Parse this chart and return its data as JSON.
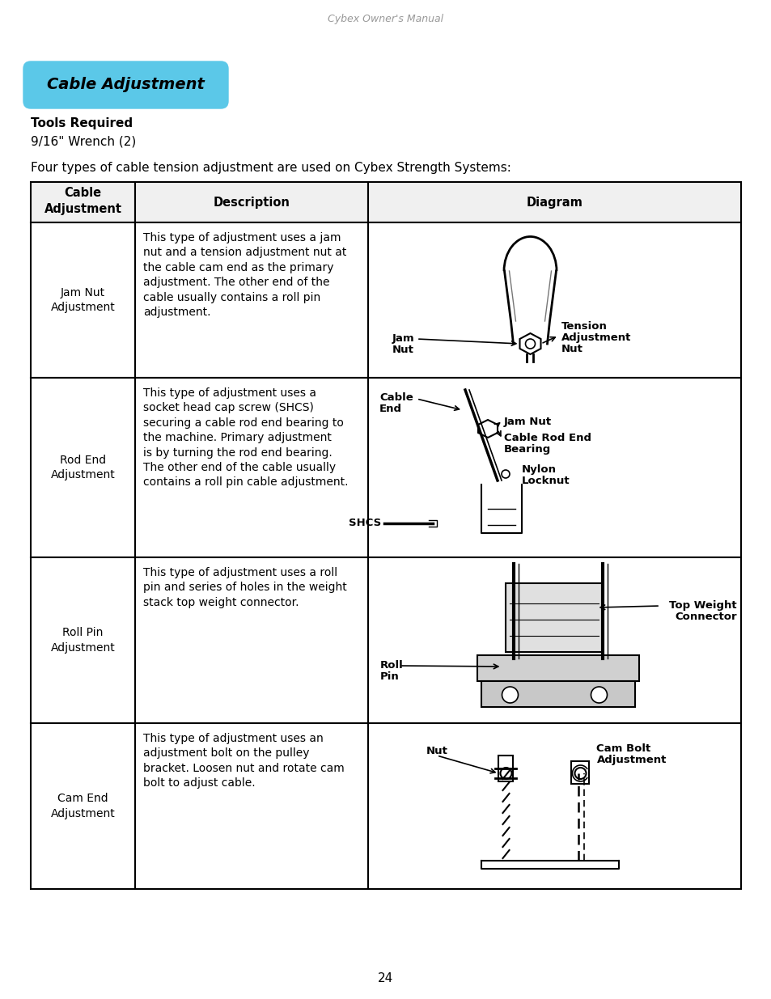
{
  "header_text": "Cybex Owner's Manual",
  "title": "Cable Adjustment",
  "title_bg_color": "#5bc8e8",
  "tools_required_label": "Tools Required",
  "tools_required_text": "9/16\" Wrench (2)",
  "intro_text": "Four types of cable tension adjustment are used on Cybex Strength Systems:",
  "table_col_headers": [
    "Cable\nAdjustment",
    "Description",
    "Diagram"
  ],
  "row_labels": [
    "Jam Nut\nAdjustment",
    "Rod End\nAdjustment",
    "Roll Pin\nAdjustment",
    "Cam End\nAdjustment"
  ],
  "row_descriptions": [
    "This type of adjustment uses a jam\nnut and a tension adjustment nut at\nthe cable cam end as the primary\nadjustment. The other end of the\ncable usually contains a roll pin\nadjustment.",
    "This type of adjustment uses a\nsocket head cap screw (SHCS)\nsecuring a cable rod end bearing to\nthe machine. Primary adjustment\nis by turning the rod end bearing.\nThe other end of the cable usually\ncontains a roll pin cable adjustment.",
    "This type of adjustment uses a roll\npin and series of holes in the weight\nstack top weight connector.",
    "This type of adjustment uses an\nadjustment bolt on the pulley\nbracket. Loosen nut and rotate cam\nbolt to adjust cable."
  ],
  "page_number": "24",
  "bg_color": "#ffffff"
}
